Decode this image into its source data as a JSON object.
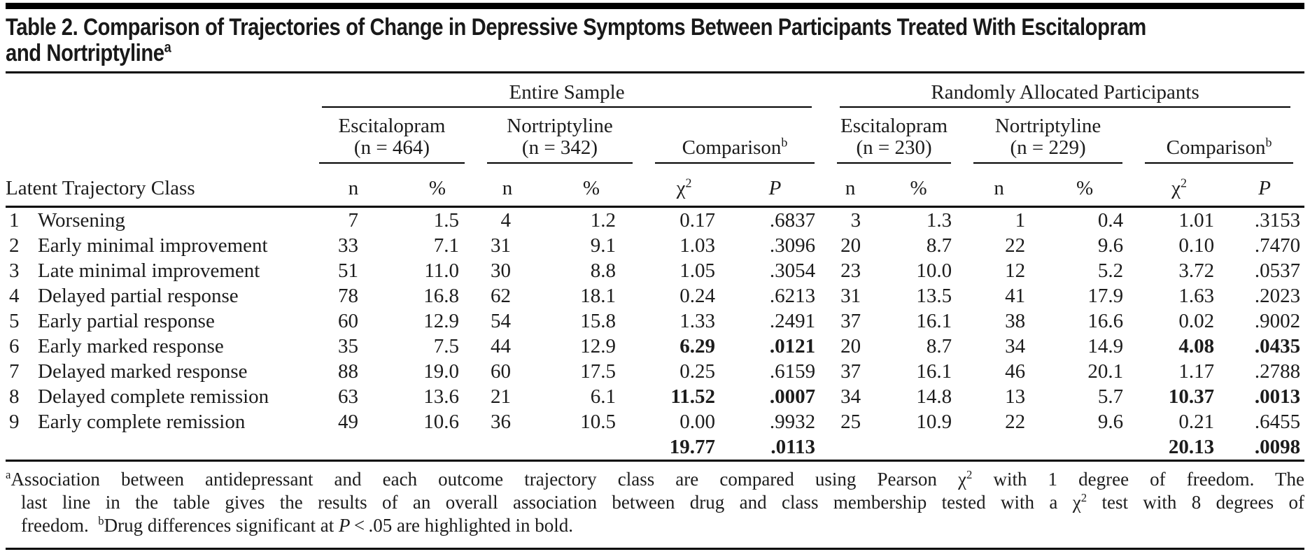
{
  "colors": {
    "ink": "#1c1c1c",
    "rule": "#000000",
    "background": "#ffffff"
  },
  "title": {
    "line1": "Table 2. Comparison of Trajectories of Change in Depressive Symptoms Between Participants Treated With Escitalopram",
    "line2_rich": [
      {
        "t": "and Nortriptyline"
      },
      {
        "t": "a",
        "s": "sup"
      }
    ]
  },
  "table": {
    "row_header": "Latent Trajectory Class",
    "spanners": [
      {
        "label": "Entire Sample"
      },
      {
        "label": "Randomly Allocated Participants"
      }
    ],
    "groups": [
      {
        "line1": "Escitalopram",
        "line2": "(n = 464)"
      },
      {
        "line1": "Nortriptyline",
        "line2": "(n = 342)"
      },
      {
        "rich": [
          {
            "t": "Comparison"
          },
          {
            "t": "b",
            "s": "sup"
          }
        ]
      },
      {
        "line1": "Escitalopram",
        "line2": "(n = 230)"
      },
      {
        "line1": "Nortriptyline",
        "line2": "(n = 229)"
      },
      {
        "rich": [
          {
            "t": "Comparison"
          },
          {
            "t": "b",
            "s": "sup"
          }
        ]
      }
    ],
    "subheader_cells": [
      [
        {
          "t": "n"
        }
      ],
      [
        {
          "t": "%"
        }
      ],
      [
        {
          "t": "n"
        }
      ],
      [
        {
          "t": "%"
        }
      ],
      [
        {
          "t": "χ"
        },
        {
          "t": "2",
          "s": "sup"
        }
      ],
      [
        {
          "t": "P",
          "s": "i"
        }
      ],
      [
        {
          "t": "n"
        }
      ],
      [
        {
          "t": "%"
        }
      ],
      [
        {
          "t": "n"
        }
      ],
      [
        {
          "t": "%"
        }
      ],
      [
        {
          "t": "χ"
        },
        {
          "t": "2",
          "s": "sup"
        }
      ],
      [
        {
          "t": "P",
          "s": "i"
        }
      ]
    ],
    "rows": [
      {
        "num": "1",
        "label": "Worsening",
        "values": [
          "7",
          "1.5",
          "4",
          "1.2",
          "0.17",
          ".6837",
          "3",
          "1.3",
          "1",
          "0.4",
          "1.01",
          ".3153"
        ],
        "bold": []
      },
      {
        "num": "2",
        "label": "Early minimal improvement",
        "values": [
          "33",
          "7.1",
          "31",
          "9.1",
          "1.03",
          ".3096",
          "20",
          "8.7",
          "22",
          "9.6",
          "0.10",
          ".7470"
        ],
        "bold": []
      },
      {
        "num": "3",
        "label": "Late minimal improvement",
        "values": [
          "51",
          "11.0",
          "30",
          "8.8",
          "1.05",
          ".3054",
          "23",
          "10.0",
          "12",
          "5.2",
          "3.72",
          ".0537"
        ],
        "bold": []
      },
      {
        "num": "4",
        "label": "Delayed partial response",
        "values": [
          "78",
          "16.8",
          "62",
          "18.1",
          "0.24",
          ".6213",
          "31",
          "13.5",
          "41",
          "17.9",
          "1.63",
          ".2023"
        ],
        "bold": []
      },
      {
        "num": "5",
        "label": "Early partial response",
        "values": [
          "60",
          "12.9",
          "54",
          "15.8",
          "1.33",
          ".2491",
          "37",
          "16.1",
          "38",
          "16.6",
          "0.02",
          ".9002"
        ],
        "bold": []
      },
      {
        "num": "6",
        "label": "Early marked response",
        "values": [
          "35",
          "7.5",
          "44",
          "12.9",
          "6.29",
          ".0121",
          "20",
          "8.7",
          "34",
          "14.9",
          "4.08",
          ".0435"
        ],
        "bold": [
          4,
          5,
          10,
          11
        ]
      },
      {
        "num": "7",
        "label": "Delayed marked response",
        "values": [
          "88",
          "19.0",
          "60",
          "17.5",
          "0.25",
          ".6159",
          "37",
          "16.1",
          "46",
          "20.1",
          "1.17",
          ".2788"
        ],
        "bold": []
      },
      {
        "num": "8",
        "label": "Delayed complete remission",
        "values": [
          "63",
          "13.6",
          "21",
          "6.1",
          "11.52",
          ".0007",
          "34",
          "14.8",
          "13",
          "5.7",
          "10.37",
          ".0013"
        ],
        "bold": [
          4,
          5,
          10,
          11
        ]
      },
      {
        "num": "9",
        "label": "Early complete remission",
        "values": [
          "49",
          "10.6",
          "36",
          "10.5",
          "0.00",
          ".9932",
          "25",
          "10.9",
          "22",
          "9.6",
          "0.21",
          ".6455"
        ],
        "bold": []
      },
      {
        "num": "",
        "label": "",
        "values": [
          "",
          "",
          "",
          "",
          "19.77",
          ".0113",
          "",
          "",
          "",
          "",
          "20.13",
          ".0098"
        ],
        "bold": [
          4,
          5,
          10,
          11
        ]
      }
    ]
  },
  "footnote": {
    "lines": [
      [
        {
          "t": "a",
          "s": "sup"
        },
        {
          "t": "Association between antidepressant and each outcome trajectory class are compared using Pearson χ"
        },
        {
          "t": "2",
          "s": "sup"
        },
        {
          "t": " with 1 degree of freedom. The"
        }
      ],
      [
        {
          "t": "last line in the table gives the results of an overall association between drug and class membership tested with a χ"
        },
        {
          "t": "2",
          "s": "sup"
        },
        {
          "t": " test with 8 degrees of"
        }
      ],
      [
        {
          "t": "freedom.  "
        },
        {
          "t": "b",
          "s": "sup"
        },
        {
          "t": "Drug differences significant at "
        },
        {
          "t": "P",
          "s": "i"
        },
        {
          "t": " < .05 are highlighted in bold."
        }
      ]
    ]
  }
}
